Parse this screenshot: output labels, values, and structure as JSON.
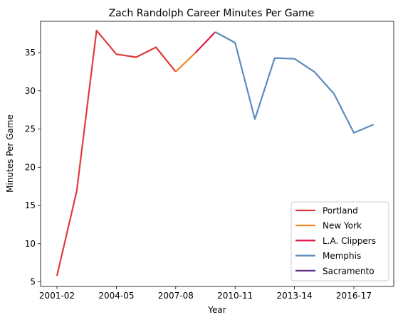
{
  "chart_data": {
    "type": "line",
    "title": "Zach Randolph Career Minutes Per Game",
    "xlabel": "Year",
    "ylabel": "Minutes Per Game",
    "categories": [
      "2001-02",
      "2002-03",
      "2003-04",
      "2004-05",
      "2005-06",
      "2006-07",
      "2007-08",
      "2008-09",
      "2009-10",
      "2010-11",
      "2011-12",
      "2012-13",
      "2013-14",
      "2014-15",
      "2015-16",
      "2016-17",
      "2017-18"
    ],
    "xtick_labels": [
      "2001-02",
      "2004-05",
      "2007-08",
      "2010-11",
      "2013-14",
      "2016-17"
    ],
    "ylim": [
      4.4,
      39.1
    ],
    "yticks": [
      5,
      10,
      15,
      20,
      25,
      30,
      35
    ],
    "grid": false,
    "legend_position": "lower-right",
    "series": [
      {
        "name": "Portland",
        "color": "#e03a3e",
        "x": [
          "2001-02",
          "2002-03",
          "2003-04",
          "2004-05",
          "2005-06",
          "2006-07",
          "2007-08"
        ],
        "values": [
          5.8,
          16.9,
          37.9,
          34.8,
          34.4,
          35.7,
          32.5
        ]
      },
      {
        "name": "New York",
        "color": "#f58426",
        "x": [
          "2007-08",
          "2008-09"
        ],
        "values": [
          32.5,
          35.0
        ]
      },
      {
        "name": "L.A. Clippers",
        "color": "#e2184a",
        "x": [
          "2008-09",
          "2009-10"
        ],
        "values": [
          35.0,
          37.7
        ]
      },
      {
        "name": "Memphis",
        "color": "#5d8bbf",
        "x": [
          "2009-10",
          "2010-11",
          "2011-12",
          "2012-13",
          "2013-14",
          "2014-15",
          "2015-16",
          "2016-17",
          "2017-18"
        ],
        "values": [
          37.7,
          36.3,
          26.3,
          34.3,
          34.2,
          32.5,
          29.6,
          24.5,
          25.6
        ]
      },
      {
        "name": "Sacramento",
        "color": "#5a2d81",
        "x": [],
        "values": []
      }
    ]
  }
}
